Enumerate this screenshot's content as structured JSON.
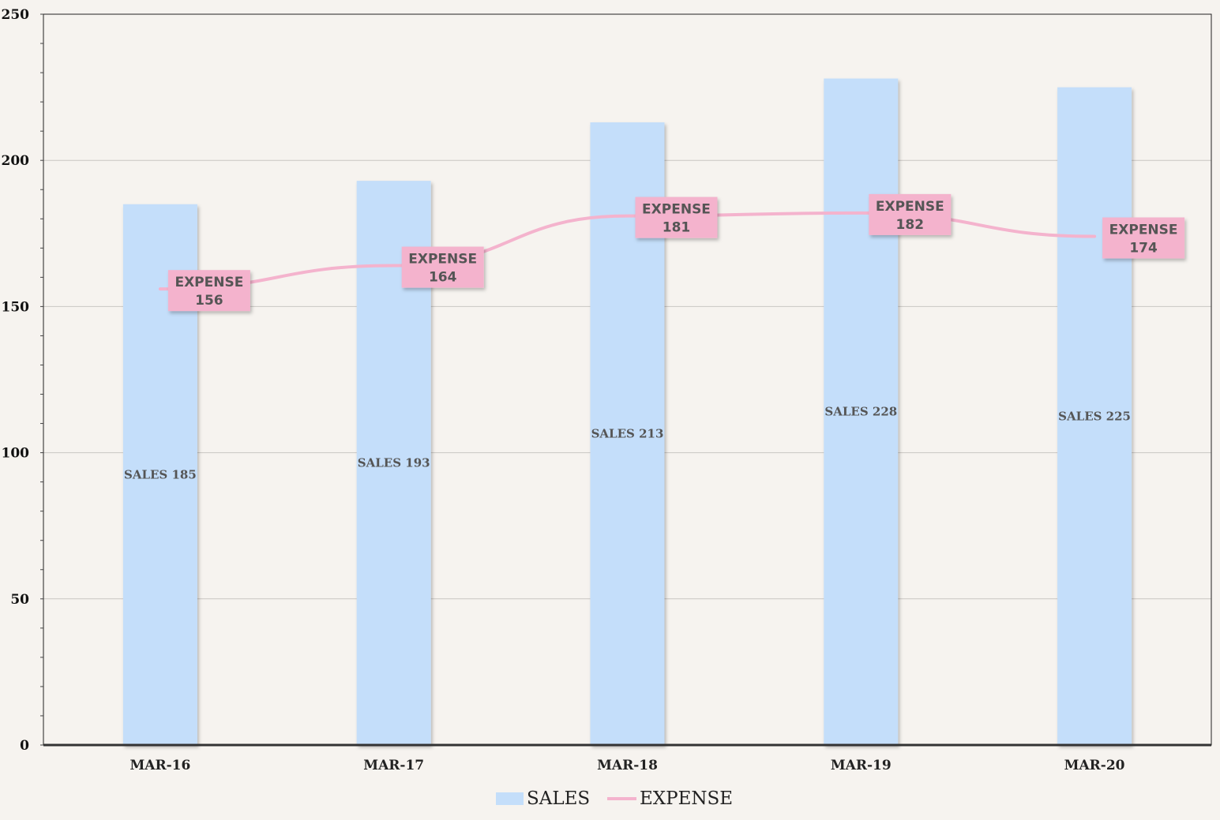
{
  "chart_data": {
    "type": "bar",
    "categories": [
      "MAR-16",
      "MAR-17",
      "MAR-18",
      "MAR-19",
      "MAR-20"
    ],
    "series": [
      {
        "name": "SALES",
        "type": "bar",
        "values": [
          185,
          193,
          213,
          228,
          225
        ],
        "color": "#c4defa",
        "label_prefix": "SALES"
      },
      {
        "name": "EXPENSE",
        "type": "line",
        "values": [
          156,
          164,
          181,
          182,
          174
        ],
        "color": "#f4b3cd",
        "label_prefix": "EXPENSE"
      }
    ],
    "title": "",
    "xlabel": "",
    "ylabel": "",
    "ylim": [
      0,
      250
    ],
    "yticks": [
      0,
      50,
      100,
      150,
      200,
      250
    ],
    "grid": true,
    "legend_position": "bottom-center"
  }
}
